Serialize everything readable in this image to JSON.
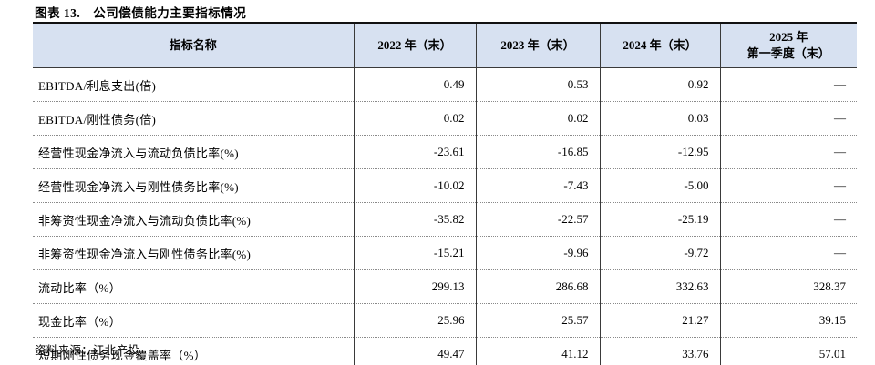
{
  "title": "图表 13.　公司偿债能力主要指标情况",
  "source": "资料来源：江北产投",
  "table": {
    "header_bg": "#d7e1f1",
    "columns": [
      "指标名称",
      "2022 年（末）",
      "2023 年（末）",
      "2024 年（末）",
      "2025 年\n第一季度（末）"
    ],
    "rows": [
      {
        "label": "EBITDA/利息支出(倍)",
        "values": [
          "0.49",
          "0.53",
          "0.92",
          "—"
        ]
      },
      {
        "label": "EBITDA/刚性债务(倍)",
        "values": [
          "0.02",
          "0.02",
          "0.03",
          "—"
        ]
      },
      {
        "label": "经营性现金净流入与流动负债比率(%)",
        "values": [
          "-23.61",
          "-16.85",
          "-12.95",
          "—"
        ]
      },
      {
        "label": "经营性现金净流入与刚性债务比率(%)",
        "values": [
          "-10.02",
          "-7.43",
          "-5.00",
          "—"
        ]
      },
      {
        "label": "非筹资性现金净流入与流动负债比率(%)",
        "values": [
          "-35.82",
          "-22.57",
          "-25.19",
          "—"
        ]
      },
      {
        "label": "非筹资性现金净流入与刚性债务比率(%)",
        "values": [
          "-15.21",
          "-9.96",
          "-9.72",
          "—"
        ]
      },
      {
        "label": "流动比率（%）",
        "values": [
          "299.13",
          "286.68",
          "332.63",
          "328.37"
        ]
      },
      {
        "label": "现金比率（%）",
        "values": [
          "25.96",
          "25.57",
          "21.27",
          "39.15"
        ]
      },
      {
        "label": "短期刚性债务现金覆盖率（%）",
        "values": [
          "49.47",
          "41.12",
          "33.76",
          "57.01"
        ]
      }
    ]
  }
}
